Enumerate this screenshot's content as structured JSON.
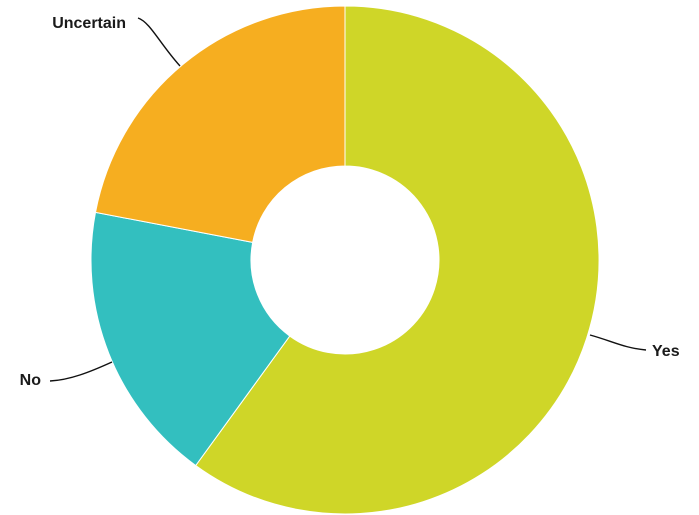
{
  "chart_data": {
    "type": "pie",
    "variant": "donut",
    "title": "",
    "slices": [
      {
        "label": "Yes",
        "value": 60,
        "color": "#CFD628"
      },
      {
        "label": "No",
        "value": 18,
        "color": "#33BFBF"
      },
      {
        "label": "Uncertain",
        "value": 22,
        "color": "#F6AE20"
      }
    ],
    "start_angle": "12 o'clock",
    "direction": "clockwise",
    "legend": "none",
    "labels": "outside with leader lines"
  }
}
